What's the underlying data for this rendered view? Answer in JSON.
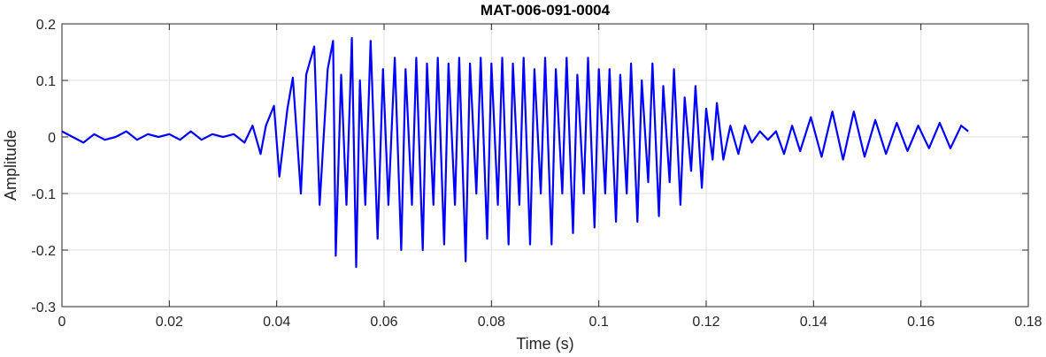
{
  "chart_data": {
    "type": "line",
    "title": "MAT-006-091-0004",
    "xlabel": "Time (s)",
    "ylabel": "Amplitude",
    "xlim": [
      0,
      0.18
    ],
    "ylim": [
      -0.3,
      0.2
    ],
    "xticks": [
      0,
      0.02,
      0.04,
      0.06,
      0.08,
      0.1,
      0.12,
      0.14,
      0.16,
      0.18
    ],
    "xtick_labels": [
      "0",
      "0.02",
      "0.04",
      "0.06",
      "0.08",
      "0.1",
      "0.12",
      "0.14",
      "0.16",
      "0.18"
    ],
    "yticks": [
      -0.3,
      -0.2,
      -0.1,
      0,
      0.1,
      0.2
    ],
    "ytick_labels": [
      "-0.3",
      "-0.2",
      "-0.1",
      "0",
      "0.1",
      "0.2"
    ],
    "grid": true,
    "line_color": "#0000ff",
    "series": [
      {
        "x": [
          0,
          0.002,
          0.004,
          0.006,
          0.008,
          0.01,
          0.012,
          0.014,
          0.016,
          0.018,
          0.02,
          0.022,
          0.024,
          0.026,
          0.028,
          0.03,
          0.032,
          0.034,
          0.0355,
          0.037,
          0.038,
          0.0395,
          0.0405,
          0.042,
          0.043,
          0.0445,
          0.0455,
          0.047,
          0.048,
          0.0495,
          0.0505,
          0.051,
          0.052,
          0.053,
          0.054,
          0.0548,
          0.0555,
          0.0565,
          0.0575,
          0.0588,
          0.0598,
          0.0608,
          0.062,
          0.0632,
          0.064,
          0.0652,
          0.066,
          0.0672,
          0.068,
          0.0692,
          0.07,
          0.0712,
          0.072,
          0.0732,
          0.074,
          0.0752,
          0.076,
          0.0772,
          0.078,
          0.0792,
          0.08,
          0.0812,
          0.082,
          0.0832,
          0.084,
          0.0852,
          0.086,
          0.0872,
          0.088,
          0.0892,
          0.09,
          0.0912,
          0.092,
          0.0932,
          0.094,
          0.0952,
          0.096,
          0.0972,
          0.098,
          0.0992,
          0.1,
          0.1012,
          0.102,
          0.1032,
          0.104,
          0.1052,
          0.106,
          0.1072,
          0.108,
          0.1092,
          0.11,
          0.1112,
          0.112,
          0.1132,
          0.114,
          0.1152,
          0.116,
          0.1172,
          0.118,
          0.1192,
          0.12,
          0.1212,
          0.122,
          0.1232,
          0.1245,
          0.126,
          0.1272,
          0.1285,
          0.13,
          0.1315,
          0.133,
          0.1345,
          0.136,
          0.1375,
          0.1395,
          0.1415,
          0.1435,
          0.1455,
          0.1475,
          0.1495,
          0.1515,
          0.1535,
          0.1555,
          0.1575,
          0.1595,
          0.1615,
          0.1635,
          0.1655,
          0.1675,
          0.1688
        ],
        "y": [
          0.01,
          0.0,
          -0.01,
          0.005,
          -0.005,
          0.0,
          0.01,
          -0.005,
          0.005,
          0.0,
          0.005,
          -0.005,
          0.01,
          -0.005,
          0.005,
          0.0,
          0.005,
          -0.01,
          0.02,
          -0.03,
          0.02,
          0.055,
          -0.07,
          0.05,
          0.105,
          -0.1,
          0.11,
          0.16,
          -0.12,
          0.12,
          0.17,
          -0.21,
          0.11,
          -0.12,
          0.175,
          -0.23,
          0.1,
          -0.12,
          0.17,
          -0.18,
          0.12,
          -0.12,
          0.14,
          -0.2,
          0.12,
          -0.12,
          0.14,
          -0.2,
          0.13,
          -0.12,
          0.14,
          -0.19,
          0.13,
          -0.12,
          0.14,
          -0.22,
          0.13,
          -0.1,
          0.14,
          -0.18,
          0.13,
          -0.12,
          0.14,
          -0.19,
          0.13,
          -0.12,
          0.14,
          -0.19,
          0.12,
          -0.1,
          0.14,
          -0.19,
          0.12,
          -0.1,
          0.14,
          -0.17,
          0.11,
          -0.1,
          0.14,
          -0.16,
          0.12,
          -0.1,
          0.12,
          -0.15,
          0.11,
          -0.1,
          0.13,
          -0.15,
          0.1,
          -0.08,
          0.13,
          -0.14,
          0.09,
          -0.08,
          0.12,
          -0.12,
          0.07,
          -0.06,
          0.09,
          -0.09,
          0.05,
          -0.04,
          0.06,
          -0.04,
          0.02,
          -0.03,
          0.02,
          -0.01,
          0.01,
          -0.005,
          0.01,
          -0.03,
          0.02,
          -0.025,
          0.035,
          -0.035,
          0.045,
          -0.04,
          0.045,
          -0.035,
          0.03,
          -0.03,
          0.025,
          -0.025,
          0.02,
          -0.02,
          0.025,
          -0.02,
          0.02,
          0.01
        ]
      }
    ]
  }
}
